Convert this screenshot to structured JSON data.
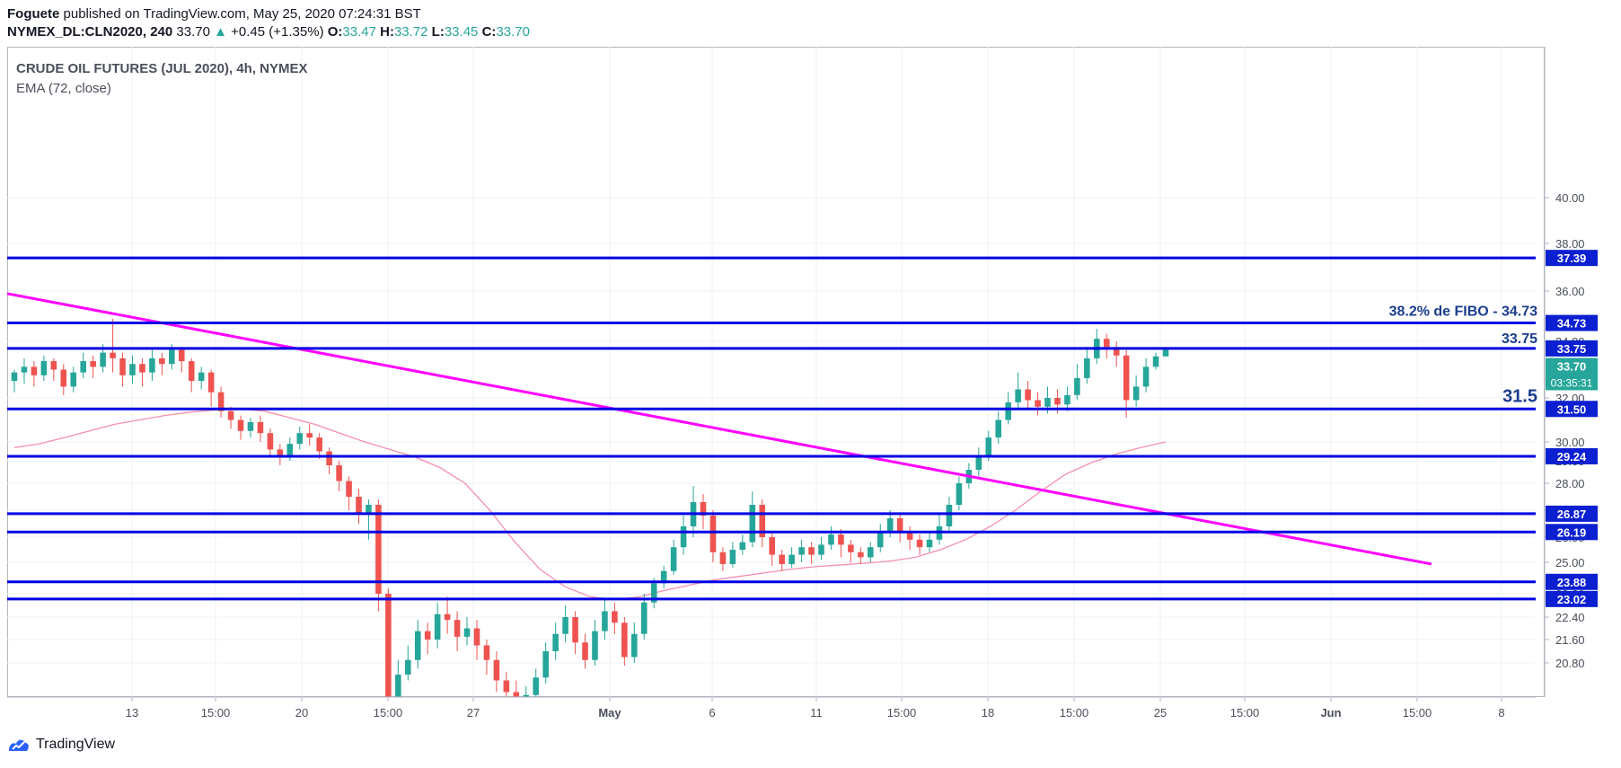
{
  "header": {
    "author": "Foguete",
    "published_text": "published on TradingView.com, May 25, 2020 07:24:31 BST",
    "symbol": "NYMEX_DL:CLN2020, 240",
    "last": "33.70",
    "change": "+0.45 (+1.35%)",
    "o_label": "O:",
    "o": "33.47",
    "h_label": "H:",
    "h": "33.72",
    "l_label": "L:",
    "l": "33.45",
    "c_label": "C:",
    "c": "33.70"
  },
  "legend": {
    "title": "CRUDE OIL FUTURES (JUL 2020), 4h, NYMEX",
    "indicator": "EMA (72, close)"
  },
  "footer": {
    "brand": "TradingView"
  },
  "colors": {
    "up": "#26a69a",
    "down": "#ef5350",
    "level": "#0000e6",
    "trend": "#ff00ff",
    "ema": "#f48fb1",
    "label_bg": "#0c1fd1",
    "price_bg": "#26a69a"
  },
  "chart_data": {
    "type": "candlestick",
    "y_ticks": [
      20.8,
      21.6,
      22.4,
      23.2,
      25.0,
      26.0,
      27.0,
      28.0,
      29.0,
      30.0,
      32.0,
      34.0,
      36.0,
      38.0,
      40.0
    ],
    "x_ticks": [
      "13",
      "15:00",
      "20",
      "15:00",
      "27",
      "May",
      "6",
      "11",
      "15:00",
      "18",
      "15:00",
      "25",
      "15:00",
      "Jun",
      "15:00",
      "8"
    ],
    "levels": [
      {
        "value": 37.39,
        "label": "37.39"
      },
      {
        "value": 34.73,
        "label": "34.73"
      },
      {
        "value": 33.75,
        "label": "33.75"
      },
      {
        "value": 31.5,
        "label": "31.50"
      },
      {
        "value": 29.24,
        "label": "29.24"
      },
      {
        "value": 26.87,
        "label": "26.87"
      },
      {
        "value": 26.19,
        "label": "26.19"
      },
      {
        "value": 23.88,
        "label": "23.88"
      },
      {
        "value": 23.02,
        "label": "23.02"
      }
    ],
    "annotations": [
      {
        "text": "38.2% de FIBO - 34.73",
        "value": 34.73
      },
      {
        "text": "33.75",
        "value": 33.75
      },
      {
        "text": "31.5",
        "value": 31.5
      }
    ],
    "last_price": {
      "value": 33.7,
      "label": "33.70",
      "countdown": "03:35:31"
    },
    "trendline": {
      "from": {
        "bar": 0,
        "value": 35.9
      },
      "to": {
        "bar": 144,
        "value": 24.9
      }
    },
    "ema": [
      29.7,
      29.9,
      30.2,
      30.5,
      30.8,
      31.0,
      31.2,
      31.35,
      31.45,
      31.5,
      31.4,
      31.1,
      30.8,
      30.4,
      30.0,
      29.6,
      29.2,
      28.7,
      28.0,
      27.0,
      25.8,
      24.6,
      23.6,
      23.1,
      23.0,
      23.1,
      23.4,
      23.7,
      24.0,
      24.2,
      24.4,
      24.6,
      24.75,
      24.85,
      24.95,
      25.05,
      25.2,
      25.5,
      25.9,
      26.4,
      27.0,
      27.7,
      28.4,
      28.9,
      29.35,
      29.7,
      30.0
    ],
    "candles": [
      [
        32.6,
        32.9,
        32.2,
        33.0
      ],
      [
        32.9,
        33.1,
        32.5,
        33.4
      ],
      [
        33.1,
        32.8,
        32.4,
        33.3
      ],
      [
        32.8,
        33.3,
        32.6,
        33.5
      ],
      [
        33.3,
        33.0,
        32.6,
        33.4
      ],
      [
        33.0,
        32.4,
        32.1,
        33.2
      ],
      [
        32.4,
        32.9,
        32.2,
        33.1
      ],
      [
        32.9,
        33.3,
        32.7,
        33.6
      ],
      [
        33.3,
        33.1,
        32.7,
        33.5
      ],
      [
        33.1,
        33.6,
        32.9,
        33.9
      ],
      [
        33.6,
        33.4,
        32.9,
        34.9
      ],
      [
        33.4,
        32.8,
        32.4,
        33.6
      ],
      [
        32.8,
        33.2,
        32.5,
        33.5
      ],
      [
        33.2,
        32.9,
        32.4,
        33.4
      ],
      [
        32.9,
        33.4,
        32.6,
        33.7
      ],
      [
        33.4,
        33.2,
        32.8,
        33.6
      ],
      [
        33.2,
        33.7,
        33.0,
        33.9
      ],
      [
        33.7,
        33.3,
        32.9,
        33.8
      ],
      [
        33.3,
        32.6,
        32.2,
        33.4
      ],
      [
        32.6,
        32.9,
        32.3,
        33.1
      ],
      [
        32.9,
        32.2,
        31.6,
        33.0
      ],
      [
        32.2,
        31.4,
        31.1,
        32.4
      ],
      [
        31.4,
        31.0,
        30.6,
        31.6
      ],
      [
        31.0,
        30.5,
        30.1,
        31.2
      ],
      [
        30.5,
        30.9,
        30.2,
        31.1
      ],
      [
        30.9,
        30.4,
        30.0,
        31.2
      ],
      [
        30.4,
        29.6,
        29.2,
        30.6
      ],
      [
        29.6,
        29.2,
        28.8,
        29.9
      ],
      [
        29.2,
        29.9,
        29.0,
        30.2
      ],
      [
        29.9,
        30.4,
        29.6,
        30.7
      ],
      [
        30.4,
        30.2,
        29.8,
        30.8
      ],
      [
        30.2,
        29.5,
        29.1,
        30.4
      ],
      [
        29.5,
        28.8,
        28.4,
        29.7
      ],
      [
        28.8,
        28.1,
        27.7,
        29.0
      ],
      [
        28.1,
        27.5,
        27.0,
        28.3
      ],
      [
        27.5,
        26.9,
        26.5,
        27.8
      ],
      [
        26.9,
        27.2,
        25.9,
        27.4
      ],
      [
        27.2,
        23.2,
        22.6,
        27.4
      ],
      [
        23.2,
        19.6,
        19.0,
        23.5
      ],
      [
        19.6,
        20.4,
        19.3,
        20.9
      ],
      [
        20.4,
        20.9,
        20.2,
        21.4
      ],
      [
        20.9,
        21.9,
        20.6,
        22.3
      ],
      [
        21.9,
        21.6,
        21.1,
        22.2
      ],
      [
        21.6,
        22.5,
        21.3,
        22.9
      ],
      [
        22.5,
        22.3,
        21.8,
        23.1
      ],
      [
        22.3,
        21.7,
        21.2,
        22.6
      ],
      [
        21.7,
        22.0,
        21.4,
        22.4
      ],
      [
        22.0,
        21.4,
        20.9,
        22.3
      ],
      [
        21.4,
        20.9,
        20.4,
        21.6
      ],
      [
        20.9,
        20.2,
        19.8,
        21.2
      ],
      [
        20.2,
        19.8,
        19.4,
        20.5
      ],
      [
        19.8,
        19.5,
        19.1,
        20.2
      ],
      [
        19.5,
        19.7,
        19.2,
        20.0
      ],
      [
        19.7,
        20.3,
        19.5,
        20.6
      ],
      [
        20.3,
        21.2,
        20.1,
        21.5
      ],
      [
        21.2,
        21.8,
        20.9,
        22.2
      ],
      [
        21.8,
        22.4,
        21.5,
        22.8
      ],
      [
        22.4,
        21.5,
        21.1,
        22.6
      ],
      [
        21.5,
        20.9,
        20.6,
        21.8
      ],
      [
        20.9,
        21.9,
        20.7,
        22.3
      ],
      [
        21.9,
        22.6,
        21.6,
        23.0
      ],
      [
        22.6,
        22.2,
        21.8,
        22.9
      ],
      [
        22.2,
        21.0,
        20.7,
        22.4
      ],
      [
        21.0,
        21.8,
        20.8,
        22.2
      ],
      [
        21.8,
        22.9,
        21.6,
        23.2
      ],
      [
        22.9,
        23.8,
        22.7,
        24.1
      ],
      [
        23.8,
        24.5,
        23.5,
        24.8
      ],
      [
        24.5,
        25.6,
        24.3,
        25.9
      ],
      [
        25.6,
        26.4,
        25.3,
        26.8
      ],
      [
        26.4,
        27.3,
        26.0,
        27.9
      ],
      [
        27.3,
        26.8,
        26.3,
        27.6
      ],
      [
        26.8,
        25.4,
        25.0,
        27.0
      ],
      [
        25.4,
        24.9,
        24.5,
        25.6
      ],
      [
        24.9,
        25.5,
        24.7,
        25.8
      ],
      [
        25.5,
        25.8,
        25.3,
        26.1
      ],
      [
        25.8,
        27.2,
        25.6,
        27.7
      ],
      [
        27.2,
        26.0,
        25.6,
        27.4
      ],
      [
        26.0,
        25.3,
        24.8,
        26.2
      ],
      [
        25.3,
        24.9,
        24.5,
        25.5
      ],
      [
        24.9,
        25.3,
        24.7,
        25.6
      ],
      [
        25.3,
        25.6,
        25.0,
        25.9
      ],
      [
        25.6,
        25.3,
        24.9,
        25.8
      ],
      [
        25.3,
        25.7,
        25.1,
        26.0
      ],
      [
        25.7,
        26.1,
        25.5,
        26.4
      ],
      [
        26.1,
        25.7,
        25.2,
        26.3
      ],
      [
        25.7,
        25.4,
        25.0,
        25.9
      ],
      [
        25.4,
        25.2,
        24.9,
        25.6
      ],
      [
        25.2,
        25.6,
        25.0,
        25.8
      ],
      [
        25.6,
        26.2,
        25.4,
        26.5
      ],
      [
        26.2,
        26.7,
        26.0,
        27.0
      ],
      [
        26.7,
        26.2,
        25.8,
        26.9
      ],
      [
        26.2,
        25.9,
        25.5,
        26.4
      ],
      [
        25.9,
        25.6,
        25.3,
        26.1
      ],
      [
        25.6,
        25.9,
        25.4,
        26.2
      ],
      [
        25.9,
        26.4,
        25.7,
        26.9
      ],
      [
        26.4,
        27.2,
        26.2,
        27.5
      ],
      [
        27.2,
        28.0,
        27.0,
        28.3
      ],
      [
        28.0,
        28.6,
        27.8,
        28.9
      ],
      [
        28.6,
        29.3,
        28.3,
        29.7
      ],
      [
        29.3,
        30.2,
        29.0,
        30.5
      ],
      [
        30.2,
        31.0,
        29.9,
        31.4
      ],
      [
        31.0,
        31.8,
        30.8,
        32.2
      ],
      [
        31.8,
        32.3,
        31.5,
        32.9
      ],
      [
        32.3,
        31.9,
        31.5,
        32.6
      ],
      [
        31.9,
        31.6,
        31.2,
        32.2
      ],
      [
        31.6,
        32.0,
        31.3,
        32.4
      ],
      [
        32.0,
        31.7,
        31.3,
        32.3
      ],
      [
        31.7,
        32.1,
        31.4,
        32.4
      ],
      [
        32.1,
        32.7,
        31.9,
        33.2
      ],
      [
        32.7,
        33.4,
        32.5,
        33.8
      ],
      [
        33.4,
        34.1,
        33.2,
        34.5
      ],
      [
        34.1,
        33.8,
        33.4,
        34.3
      ],
      [
        33.8,
        33.5,
        33.1,
        34.0
      ],
      [
        33.5,
        31.9,
        31.1,
        33.7
      ],
      [
        31.9,
        32.4,
        31.6,
        32.8
      ],
      [
        32.4,
        33.1,
        32.2,
        33.4
      ],
      [
        33.1,
        33.47,
        33.0,
        33.6
      ],
      [
        33.47,
        33.7,
        33.45,
        33.72
      ]
    ]
  }
}
